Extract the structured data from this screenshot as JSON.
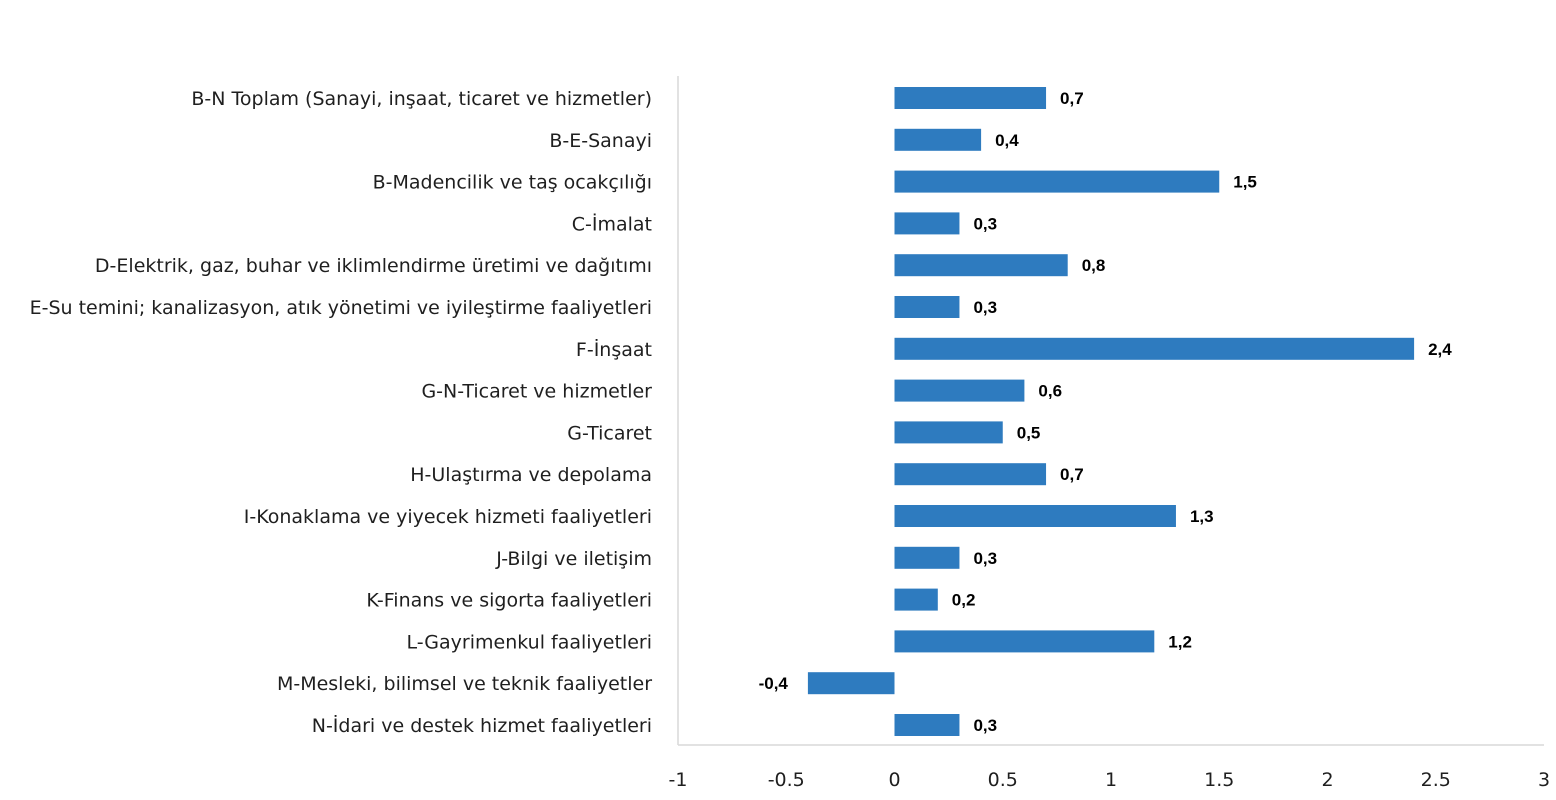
{
  "chart_data": {
    "type": "bar",
    "orientation": "horizontal",
    "title": "",
    "xlabel": "",
    "ylabel": "",
    "xlim": [
      -1,
      3
    ],
    "x_ticks": [
      "-1",
      "-0.5",
      "0",
      "0.5",
      "1",
      "1.5",
      "2",
      "2.5",
      "3"
    ],
    "x_tick_values": [
      -1,
      -0.5,
      0,
      0.5,
      1,
      1.5,
      2,
      2.5,
      3
    ],
    "grid": false,
    "legend": "none",
    "bar_color": "#2e7bbf",
    "categories": [
      "B-N Toplam (Sanayi, inşaat, ticaret ve hizmetler)",
      "B-E-Sanayi",
      "B-Madencilik ve taş ocakçılığı",
      "C-İmalat",
      "D-Elektrik, gaz, buhar ve iklimlendirme üretimi ve dağıtımı",
      "E-Su temini; kanalizasyon, atık yönetimi ve iyileştirme faaliyetleri",
      "F-İnşaat",
      "G-N-Ticaret ve hizmetler",
      "G-Ticaret",
      "H-Ulaştırma ve depolama",
      "I-Konaklama ve yiyecek hizmeti faaliyetleri",
      "J-Bilgi ve iletişim",
      "K-Finans ve sigorta faaliyetleri",
      "L-Gayrimenkul faaliyetleri",
      "M-Mesleki, bilimsel ve teknik faaliyetler",
      "N-İdari ve destek hizmet faaliyetleri"
    ],
    "values": [
      0.7,
      0.4,
      1.5,
      0.3,
      0.8,
      0.3,
      2.4,
      0.6,
      0.5,
      0.7,
      1.3,
      0.3,
      0.2,
      1.2,
      -0.4,
      0.3
    ],
    "value_labels": [
      "0,7",
      "0,4",
      "1,5",
      "0,3",
      "0,8",
      "0,3",
      "2,4",
      "0,6",
      "0,5",
      "0,7",
      "1,3",
      "0,3",
      "0,2",
      "1,2",
      "-0,4",
      "0,3"
    ]
  }
}
